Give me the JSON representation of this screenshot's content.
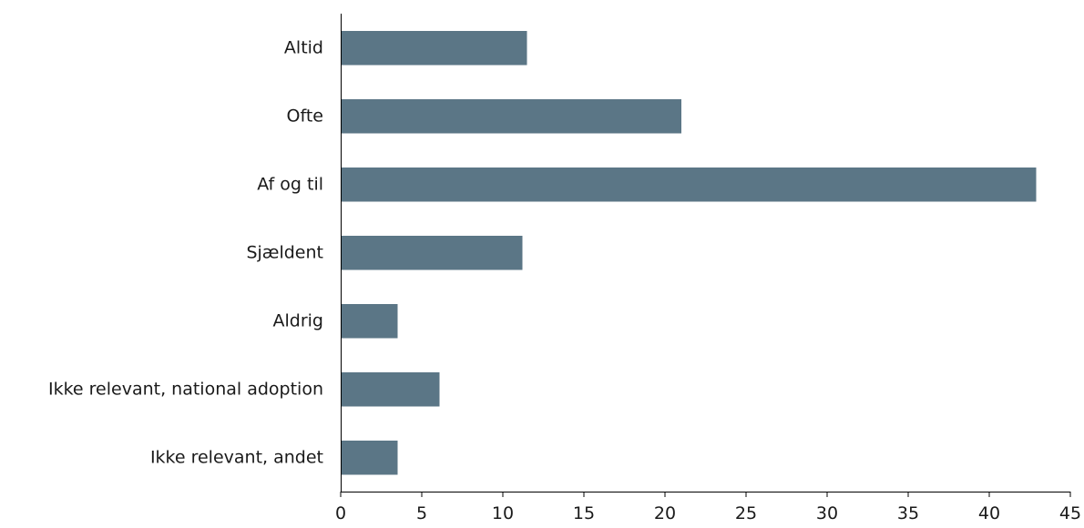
{
  "chart_data": {
    "type": "bar",
    "orientation": "horizontal",
    "categories": [
      "Altid",
      "Ofte",
      "Af og til",
      "Sjældent",
      "Aldrig",
      "Ikke relevant, national adoption",
      "Ikke relevant, andet"
    ],
    "values": [
      11.5,
      21.0,
      42.9,
      11.2,
      3.5,
      6.1,
      3.5
    ],
    "xlim": [
      0,
      45
    ],
    "xticks": [
      "0",
      "5",
      "10",
      "15",
      "20",
      "25",
      "30",
      "35",
      "40",
      "45"
    ],
    "grid": false,
    "bar_color": "#5b7686"
  }
}
